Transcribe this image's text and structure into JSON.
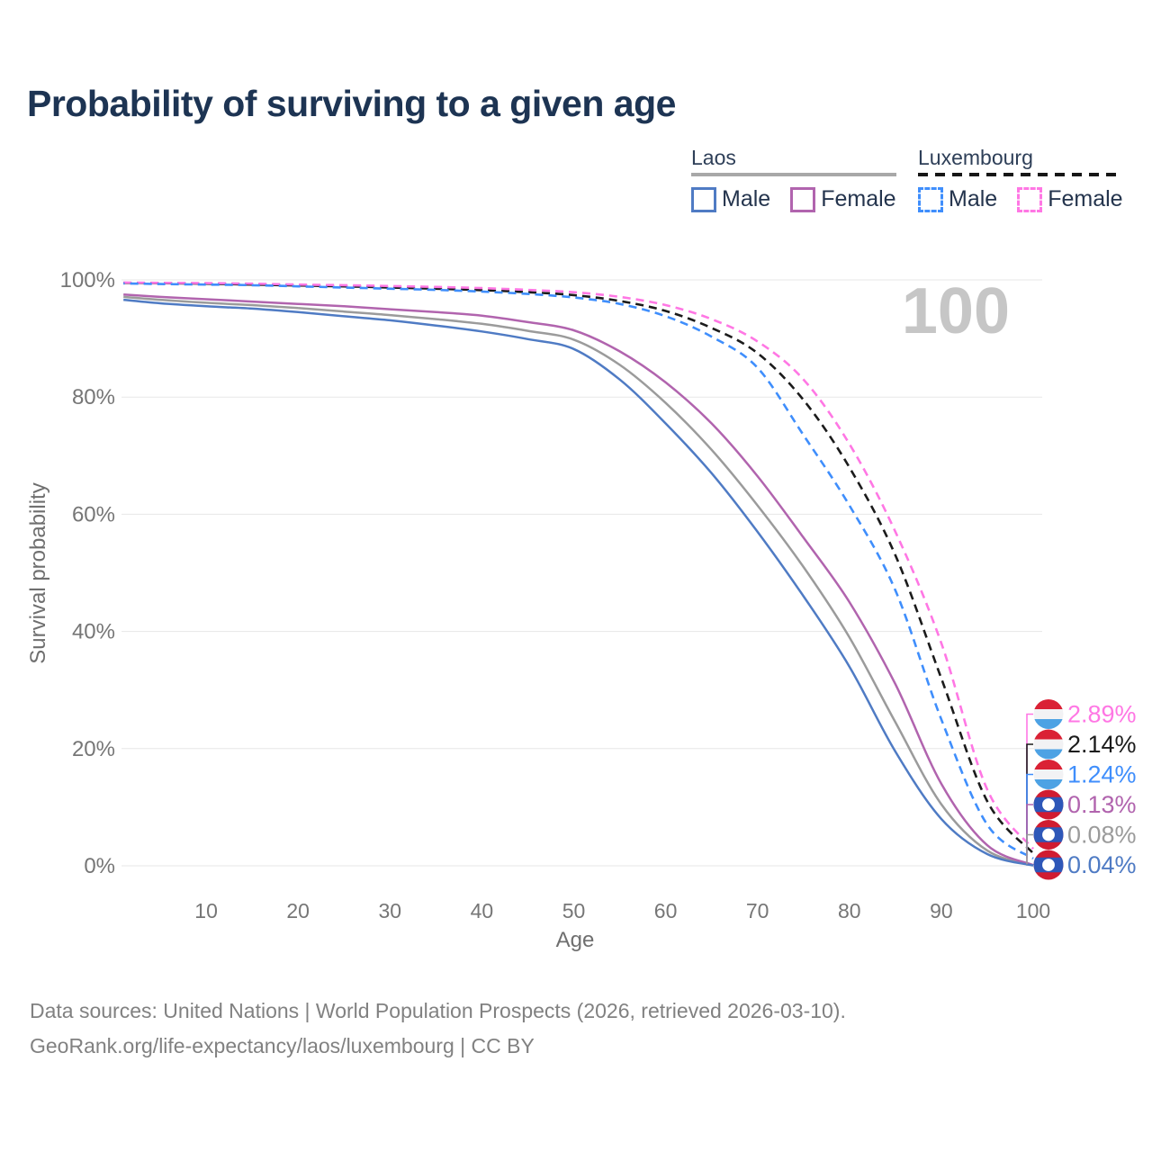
{
  "title": "Probability of surviving to a given age",
  "legend": {
    "groups": [
      {
        "label": "Laos",
        "underline": "solid",
        "underline_color": "#a8a8a8",
        "items": [
          {
            "label": "Male",
            "series": "laos_male"
          },
          {
            "label": "Female",
            "series": "laos_female"
          }
        ]
      },
      {
        "label": "Luxembourg",
        "underline": "dashed",
        "underline_color": "#161616",
        "items": [
          {
            "label": "Male",
            "series": "lux_male"
          },
          {
            "label": "Female",
            "series": "lux_female"
          }
        ]
      }
    ]
  },
  "chart_data": {
    "type": "line",
    "title": "Probability of surviving to a given age",
    "xlabel": "Age",
    "ylabel": "Survival probability",
    "xlim": [
      1,
      100
    ],
    "ylim": [
      0,
      100
    ],
    "x_ticks": [
      10,
      20,
      30,
      40,
      50,
      60,
      70,
      80,
      90,
      100
    ],
    "y_ticks": [
      0,
      20,
      40,
      60,
      80,
      100
    ],
    "y_tick_suffix": "%",
    "grid": "horizontal",
    "hover_value": "100",
    "series": [
      {
        "id": "lux_female",
        "name": "Luxembourg Female",
        "color": "#ff77e4",
        "dash": true,
        "flag": "luxembourg",
        "end_label": "2.89%",
        "points": [
          [
            1,
            99.55
          ],
          [
            5,
            99.5
          ],
          [
            10,
            99.45
          ],
          [
            15,
            99.35
          ],
          [
            20,
            99.2
          ],
          [
            25,
            99.1
          ],
          [
            30,
            98.95
          ],
          [
            35,
            98.8
          ],
          [
            40,
            98.6
          ],
          [
            45,
            98.3
          ],
          [
            50,
            97.9
          ],
          [
            55,
            97.1
          ],
          [
            60,
            95.7
          ],
          [
            65,
            93.3
          ],
          [
            70,
            89.5
          ],
          [
            75,
            83
          ],
          [
            80,
            72
          ],
          [
            85,
            57
          ],
          [
            90,
            38
          ],
          [
            95,
            13
          ],
          [
            100,
            2.89
          ]
        ]
      },
      {
        "id": "lux_total",
        "name": "Luxembourg",
        "color": "#1b1b1b",
        "dash": true,
        "flag": "luxembourg",
        "end_label": "2.14%",
        "points": [
          [
            1,
            99.5
          ],
          [
            5,
            99.45
          ],
          [
            10,
            99.35
          ],
          [
            15,
            99.2
          ],
          [
            20,
            99.05
          ],
          [
            25,
            98.9
          ],
          [
            30,
            98.7
          ],
          [
            35,
            98.5
          ],
          [
            40,
            98.25
          ],
          [
            45,
            97.9
          ],
          [
            50,
            97.4
          ],
          [
            55,
            96.4
          ],
          [
            60,
            94.7
          ],
          [
            65,
            91.8
          ],
          [
            70,
            87.5
          ],
          [
            75,
            79.5
          ],
          [
            80,
            68
          ],
          [
            85,
            53
          ],
          [
            90,
            32
          ],
          [
            95,
            11
          ],
          [
            100,
            2.14
          ]
        ]
      },
      {
        "id": "lux_male",
        "name": "Luxembourg Male",
        "color": "#3f8efc",
        "dash": true,
        "flag": "luxembourg",
        "end_label": "1.24%",
        "points": [
          [
            1,
            99.4
          ],
          [
            5,
            99.3
          ],
          [
            10,
            99.2
          ],
          [
            15,
            99.1
          ],
          [
            20,
            98.9
          ],
          [
            25,
            98.7
          ],
          [
            30,
            98.5
          ],
          [
            35,
            98.3
          ],
          [
            40,
            98.0
          ],
          [
            45,
            97.6
          ],
          [
            50,
            97.0
          ],
          [
            55,
            95.9
          ],
          [
            60,
            93.8
          ],
          [
            65,
            90.3
          ],
          [
            70,
            85
          ],
          [
            75,
            73.5
          ],
          [
            80,
            61.5
          ],
          [
            85,
            47
          ],
          [
            90,
            25
          ],
          [
            95,
            7
          ],
          [
            100,
            1.24
          ]
        ]
      },
      {
        "id": "laos_female",
        "name": "Laos Female",
        "color": "#b164ae",
        "dash": false,
        "flag": "laos",
        "end_label": "0.13%",
        "points": [
          [
            1,
            97.5
          ],
          [
            5,
            97.1
          ],
          [
            10,
            96.7
          ],
          [
            15,
            96.3
          ],
          [
            20,
            95.9
          ],
          [
            25,
            95.5
          ],
          [
            30,
            95.0
          ],
          [
            35,
            94.5
          ],
          [
            40,
            93.9
          ],
          [
            45,
            92.8
          ],
          [
            50,
            91.4
          ],
          [
            55,
            87.8
          ],
          [
            60,
            82.5
          ],
          [
            65,
            75.5
          ],
          [
            70,
            66.5
          ],
          [
            75,
            56
          ],
          [
            80,
            45
          ],
          [
            85,
            31
          ],
          [
            90,
            14
          ],
          [
            95,
            3.5
          ],
          [
            100,
            0.13
          ]
        ]
      },
      {
        "id": "laos_total",
        "name": "Laos",
        "color": "#9b9b9b",
        "dash": false,
        "flag": "laos",
        "end_label": "0.08%",
        "points": [
          [
            1,
            97.1
          ],
          [
            5,
            96.6
          ],
          [
            10,
            96.1
          ],
          [
            15,
            95.7
          ],
          [
            20,
            95.2
          ],
          [
            25,
            94.6
          ],
          [
            30,
            94.0
          ],
          [
            35,
            93.3
          ],
          [
            40,
            92.5
          ],
          [
            45,
            91.3
          ],
          [
            50,
            89.8
          ],
          [
            55,
            85.5
          ],
          [
            60,
            79
          ],
          [
            65,
            71
          ],
          [
            70,
            61.5
          ],
          [
            75,
            51
          ],
          [
            80,
            39
          ],
          [
            85,
            24.5
          ],
          [
            90,
            10.5
          ],
          [
            95,
            2.6
          ],
          [
            100,
            0.08
          ]
        ]
      },
      {
        "id": "laos_male",
        "name": "Laos Male",
        "color": "#4f7bc4",
        "dash": false,
        "flag": "laos",
        "end_label": "0.04%",
        "points": [
          [
            1,
            96.6
          ],
          [
            5,
            96.0
          ],
          [
            10,
            95.5
          ],
          [
            15,
            95.1
          ],
          [
            20,
            94.5
          ],
          [
            25,
            93.8
          ],
          [
            30,
            93.1
          ],
          [
            35,
            92.2
          ],
          [
            40,
            91.2
          ],
          [
            45,
            89.9
          ],
          [
            50,
            88.2
          ],
          [
            55,
            83
          ],
          [
            60,
            75.5
          ],
          [
            65,
            67
          ],
          [
            70,
            57
          ],
          [
            75,
            46
          ],
          [
            80,
            34
          ],
          [
            85,
            19.5
          ],
          [
            90,
            8
          ],
          [
            95,
            2
          ],
          [
            100,
            0.04
          ]
        ]
      }
    ],
    "flag_colors": {
      "luxembourg": {
        "red": "#da2135",
        "white": "#f2f2f4",
        "blue": "#4da2e4"
      },
      "laos": {
        "red": "#d01c31",
        "blue": "#2e57b8",
        "circle": "#ffffff"
      }
    },
    "grid_color": "#e7e7e7",
    "tick_color": "#767676",
    "axis_label_color": "#6f6f6f",
    "watermark_color": "#c6c6c6"
  },
  "footer": {
    "line1": "Data sources: United Nations | World Population Prospects (2026, retrieved 2026-03-10).",
    "line2": "GeoRank.org/life-expectancy/laos/luxembourg | CC BY"
  }
}
